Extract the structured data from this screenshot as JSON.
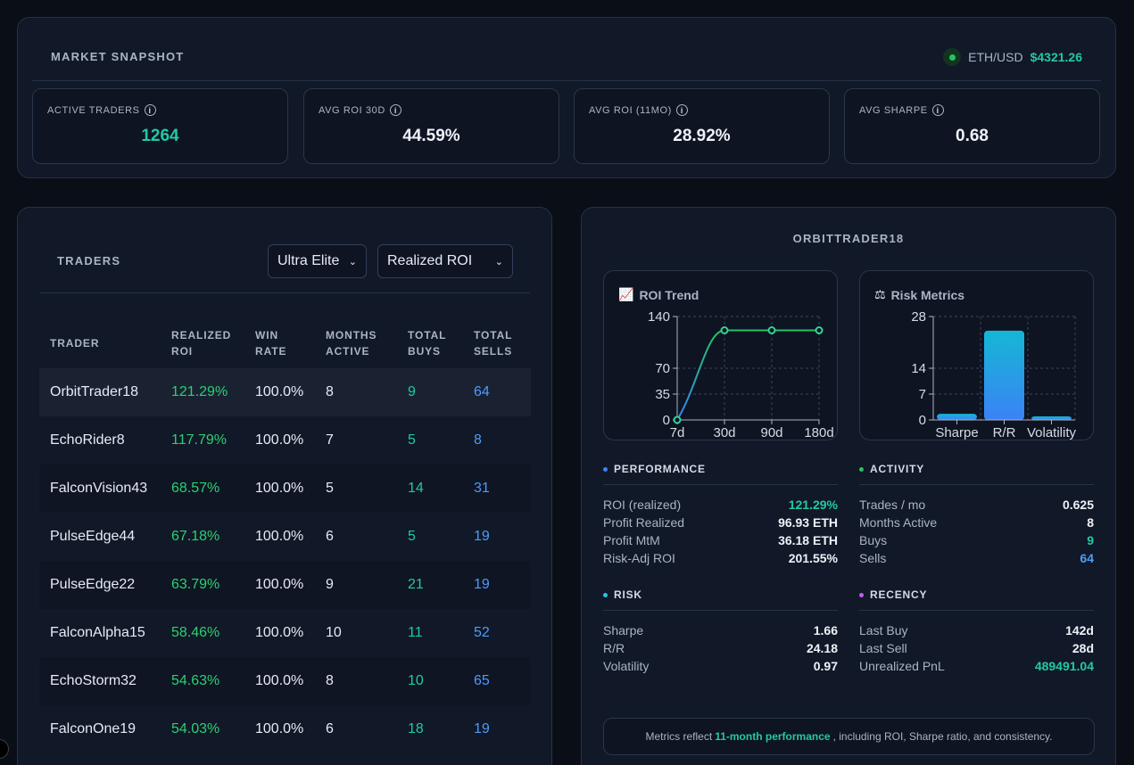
{
  "snapshot": {
    "title": "MARKET SNAPSHOT",
    "pair": "ETH/USD",
    "price": "$4321.26",
    "stats": [
      {
        "label": "ACTIVE TRADERS",
        "value": "1264"
      },
      {
        "label": "AVG ROI 30D",
        "value": "44.59%"
      },
      {
        "label": "AVG ROI (11MO)",
        "value": "28.92%"
      },
      {
        "label": "AVG SHARPE",
        "value": "0.68"
      }
    ],
    "info_glyph": "i"
  },
  "traders": {
    "title": "TRADERS",
    "filter_tier": "Ultra Elite",
    "filter_sort": "Realized ROI",
    "headers": {
      "trader": "TRADER",
      "roi_1": "REALIZED",
      "roi_2": "ROI",
      "win_1": "WIN",
      "win_2": "RATE",
      "months_1": "MONTHS",
      "months_2": "ACTIVE",
      "buys_1": "TOTAL",
      "buys_2": "BUYS",
      "sells_1": "TOTAL",
      "sells_2": "SELLS"
    },
    "rows": [
      {
        "name": "OrbitTrader18",
        "roi": "121.29%",
        "win": "100.0%",
        "months": "8",
        "buys": "9",
        "sells": "64"
      },
      {
        "name": "EchoRider8",
        "roi": "117.79%",
        "win": "100.0%",
        "months": "7",
        "buys": "5",
        "sells": "8"
      },
      {
        "name": "FalconVision43",
        "roi": "68.57%",
        "win": "100.0%",
        "months": "5",
        "buys": "14",
        "sells": "31"
      },
      {
        "name": "PulseEdge44",
        "roi": "67.18%",
        "win": "100.0%",
        "months": "6",
        "buys": "5",
        "sells": "19"
      },
      {
        "name": "PulseEdge22",
        "roi": "63.79%",
        "win": "100.0%",
        "months": "9",
        "buys": "21",
        "sells": "19"
      },
      {
        "name": "FalconAlpha15",
        "roi": "58.46%",
        "win": "100.0%",
        "months": "10",
        "buys": "11",
        "sells": "52"
      },
      {
        "name": "EchoStorm32",
        "roi": "54.63%",
        "win": "100.0%",
        "months": "8",
        "buys": "10",
        "sells": "65"
      },
      {
        "name": "FalconOne19",
        "roi": "54.03%",
        "win": "100.0%",
        "months": "6",
        "buys": "18",
        "sells": "19"
      }
    ]
  },
  "detail": {
    "title": "ORBITTRADER18",
    "roi_trend_title": "ROI Trend",
    "roi_trend_icon": "chart-increasing-icon",
    "risk_title": "Risk Metrics",
    "risk_icon": "balance-scale-icon",
    "performance": {
      "title": "PERFORMANCE",
      "rows": [
        {
          "k": "ROI (realized)",
          "v": "121.29%"
        },
        {
          "k": "Profit Realized",
          "v": "96.93 ETH"
        },
        {
          "k": "Profit MtM",
          "v": "36.18 ETH"
        },
        {
          "k": "Risk-Adj ROI",
          "v": "201.55%"
        }
      ]
    },
    "activity": {
      "title": "ACTIVITY",
      "rows": [
        {
          "k": "Trades / mo",
          "v": "0.625"
        },
        {
          "k": "Months Active",
          "v": "8"
        },
        {
          "k": "Buys",
          "v": "9"
        },
        {
          "k": "Sells",
          "v": "64"
        }
      ]
    },
    "risk": {
      "title": "RISK",
      "rows": [
        {
          "k": "Sharpe",
          "v": "1.66"
        },
        {
          "k": "R/R",
          "v": "24.18"
        },
        {
          "k": "Volatility",
          "v": "0.97"
        }
      ]
    },
    "recency": {
      "title": "RECENCY",
      "rows": [
        {
          "k": "Last Buy",
          "v": "142d"
        },
        {
          "k": "Last Sell",
          "v": "28d"
        },
        {
          "k": "Unrealized PnL",
          "v": "489491.04"
        }
      ]
    },
    "note": {
      "prefix": "Metrics reflect",
      "highlight": "11-month performance",
      "suffix": ", including ROI, Sharpe ratio, and consistency."
    }
  },
  "colors": {
    "accent_teal": "#22c9a5",
    "accent_blue": "#4d9cf8",
    "roi_green": "#2bd072",
    "live_dot": "#22c55e",
    "performance_dot": "#3b82f6",
    "activity_dot": "#22c55e",
    "risk_dot": "#22c9e0",
    "recency_dot": "#c35cf0"
  },
  "chart_data": [
    {
      "type": "line",
      "title": "ROI Trend",
      "categories": [
        "7d",
        "30d",
        "90d",
        "180d"
      ],
      "x": [
        7,
        30,
        90,
        180
      ],
      "values": [
        0,
        121.29,
        121.29,
        121.29
      ],
      "yticks": [
        0,
        35,
        70,
        140
      ],
      "ylim": [
        0,
        140
      ],
      "grid": true
    },
    {
      "type": "bar",
      "title": "Risk Metrics",
      "categories": [
        "Sharpe",
        "R/R",
        "Volatility"
      ],
      "values": [
        1.66,
        24.18,
        0.97
      ],
      "yticks": [
        0,
        7,
        14,
        28
      ],
      "ylim": [
        0,
        28
      ],
      "grid": true
    }
  ]
}
